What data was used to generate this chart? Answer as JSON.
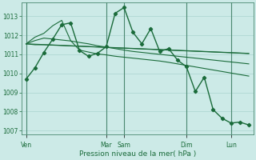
{
  "xlabel": "Pression niveau de la mer( hPa )",
  "background_color": "#cceae7",
  "grid_color": "#aad4d0",
  "line_color": "#1a6b3a",
  "ylim": [
    1006.8,
    1013.7
  ],
  "yticks": [
    1007,
    1008,
    1009,
    1010,
    1011,
    1012,
    1013
  ],
  "day_labels": [
    "Ven",
    "Mar",
    "Sam",
    "Dim",
    "Lun"
  ],
  "day_x": [
    0,
    9,
    11,
    18,
    23
  ],
  "n_points": 26,
  "series_main": [
    1009.7,
    1010.3,
    1011.1,
    1011.8,
    1012.55,
    1012.65,
    1011.2,
    1010.9,
    1011.05,
    1011.4,
    1013.15,
    1013.45,
    1012.15,
    1011.55,
    1012.35,
    1011.15,
    1011.3,
    1010.7,
    1010.35,
    1009.05,
    1009.8,
    1008.1,
    1007.65,
    1007.4,
    1007.45,
    1007.3
  ],
  "trend1": [
    1011.55,
    1011.5,
    1011.5,
    1011.48,
    1011.46,
    1011.44,
    1011.42,
    1011.4,
    1011.38,
    1011.36,
    1011.34,
    1011.32,
    1011.3,
    1011.28,
    1011.26,
    1011.24,
    1011.22,
    1011.2,
    1011.18,
    1011.16,
    1011.14,
    1011.12,
    1011.1,
    1011.08,
    1011.06,
    1011.04
  ],
  "trend2": [
    1011.55,
    1011.53,
    1011.51,
    1011.49,
    1011.47,
    1011.45,
    1011.43,
    1011.41,
    1011.39,
    1011.37,
    1011.35,
    1011.33,
    1011.31,
    1011.29,
    1011.27,
    1011.25,
    1011.23,
    1011.21,
    1011.19,
    1011.17,
    1011.15,
    1011.13,
    1011.11,
    1011.09,
    1011.07,
    1011.05
  ],
  "trend3": [
    1011.55,
    1011.72,
    1011.85,
    1011.8,
    1011.75,
    1011.7,
    1011.62,
    1011.55,
    1011.45,
    1011.38,
    1011.3,
    1011.22,
    1011.15,
    1011.1,
    1011.05,
    1011.0,
    1010.95,
    1010.9,
    1010.85,
    1010.8,
    1010.75,
    1010.7,
    1010.65,
    1010.6,
    1010.55,
    1010.5
  ],
  "trend4": [
    1011.55,
    1011.9,
    1012.1,
    1012.5,
    1012.78,
    1011.72,
    1011.22,
    1011.12,
    1011.02,
    1010.97,
    1010.9,
    1010.85,
    1010.8,
    1010.75,
    1010.7,
    1010.65,
    1010.58,
    1010.5,
    1010.42,
    1010.34,
    1010.26,
    1010.18,
    1010.1,
    1010.02,
    1009.94,
    1009.86
  ]
}
